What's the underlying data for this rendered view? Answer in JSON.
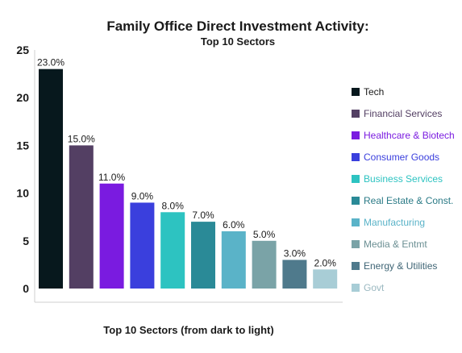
{
  "chart_data": {
    "type": "bar",
    "title": "Family Office Direct Investment Activity:",
    "subtitle": "Top 10 Sectors",
    "xlabel": "Top 10 Sectors (from dark to light)",
    "ylabel": "",
    "ylim": [
      0,
      25
    ],
    "yticks": [
      0,
      5,
      10,
      15,
      20,
      25
    ],
    "grid": false,
    "legend_position": "right",
    "categories": [
      "Tech",
      "Financial Services",
      "Healthcare & Biotech",
      "Consumer Goods",
      "Business Services",
      "Real Estate & Const.",
      "Manufacturing",
      "Media & Entmt",
      "Energy & Utilities",
      "Govt"
    ],
    "values": [
      23,
      15,
      11,
      9,
      8,
      7,
      6,
      5,
      3,
      2
    ],
    "value_labels": [
      "23.0%",
      "15.0%",
      "11.0%",
      "9.0%",
      "8.0%",
      "7.0%",
      "6.0%",
      "5.0%",
      "3.0%",
      "2.0%"
    ],
    "colors": [
      "#07181d",
      "#533f63",
      "#7a1be0",
      "#3a3fdd",
      "#2dc3c1",
      "#2a8a97",
      "#5ab3c8",
      "#7aa3a7",
      "#4f7a8c",
      "#a8cdd6"
    ],
    "legend_text_colors": [
      "#1a1a1a",
      "#533f63",
      "#7a1be0",
      "#3a3fdd",
      "#2dc3c1",
      "#2a7a86",
      "#5ab3c8",
      "#6b8f93",
      "#3f6575",
      "#9ab8c0"
    ]
  }
}
